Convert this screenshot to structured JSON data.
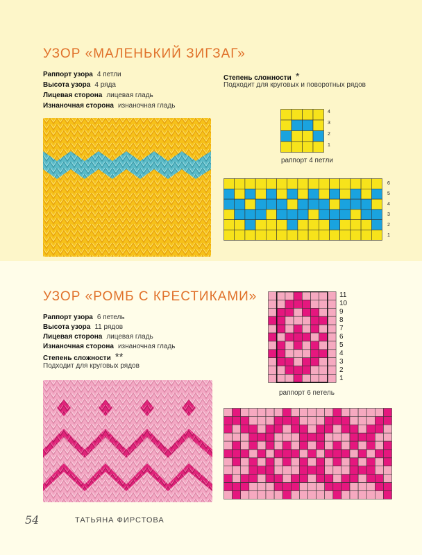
{
  "section1": {
    "title": "УЗОР «МАЛЕНЬКИЙ ЗИГЗАГ»",
    "props": [
      {
        "label": "Раппорт узора",
        "value": "4 петли"
      },
      {
        "label": "Высота узора",
        "value": "4 ряда"
      },
      {
        "label": "Лицевая сторона",
        "value": "лицевая гладь"
      },
      {
        "label": "Изнаночная сторона",
        "value": "изнаночная гладь"
      }
    ],
    "difficulty_label": "Степень сложности",
    "difficulty_value": "*",
    "note": "Подходит для круговых и поворотных рядов",
    "repeat_caption": "раппорт 4 петли",
    "repeat_rows": [
      "4",
      "3",
      "2",
      "1"
    ],
    "big_rows": [
      "6",
      "5",
      "4",
      "3",
      "2",
      "1"
    ],
    "colors": {
      "main": "#f7e31b",
      "contrast": "#1aa3df"
    }
  },
  "section2": {
    "title": "УЗОР «РОМБ С КРЕСТИКАМИ»",
    "props": [
      {
        "label": "Раппорт узора",
        "value": "6 петель"
      },
      {
        "label": "Высота узора",
        "value": "11 рядов"
      },
      {
        "label": "Лицевая сторона",
        "value": "лицевая гладь"
      },
      {
        "label": "Изнаночная сторона",
        "value": "изнаночная гладь"
      }
    ],
    "difficulty_label": "Степень сложности",
    "difficulty_value": "**",
    "note": "Подходит для круговых рядов",
    "repeat_caption": "раппорт 6 петель",
    "repeat_rows": [
      "11",
      "10",
      "9",
      "8",
      "7",
      "6",
      "5",
      "4",
      "3",
      "2",
      "1"
    ],
    "colors": {
      "main": "#f6a9c0",
      "contrast": "#e5177e"
    }
  },
  "footer": {
    "page_number": "54",
    "author": "ТАТЬЯНА ФИРСТОВА"
  }
}
